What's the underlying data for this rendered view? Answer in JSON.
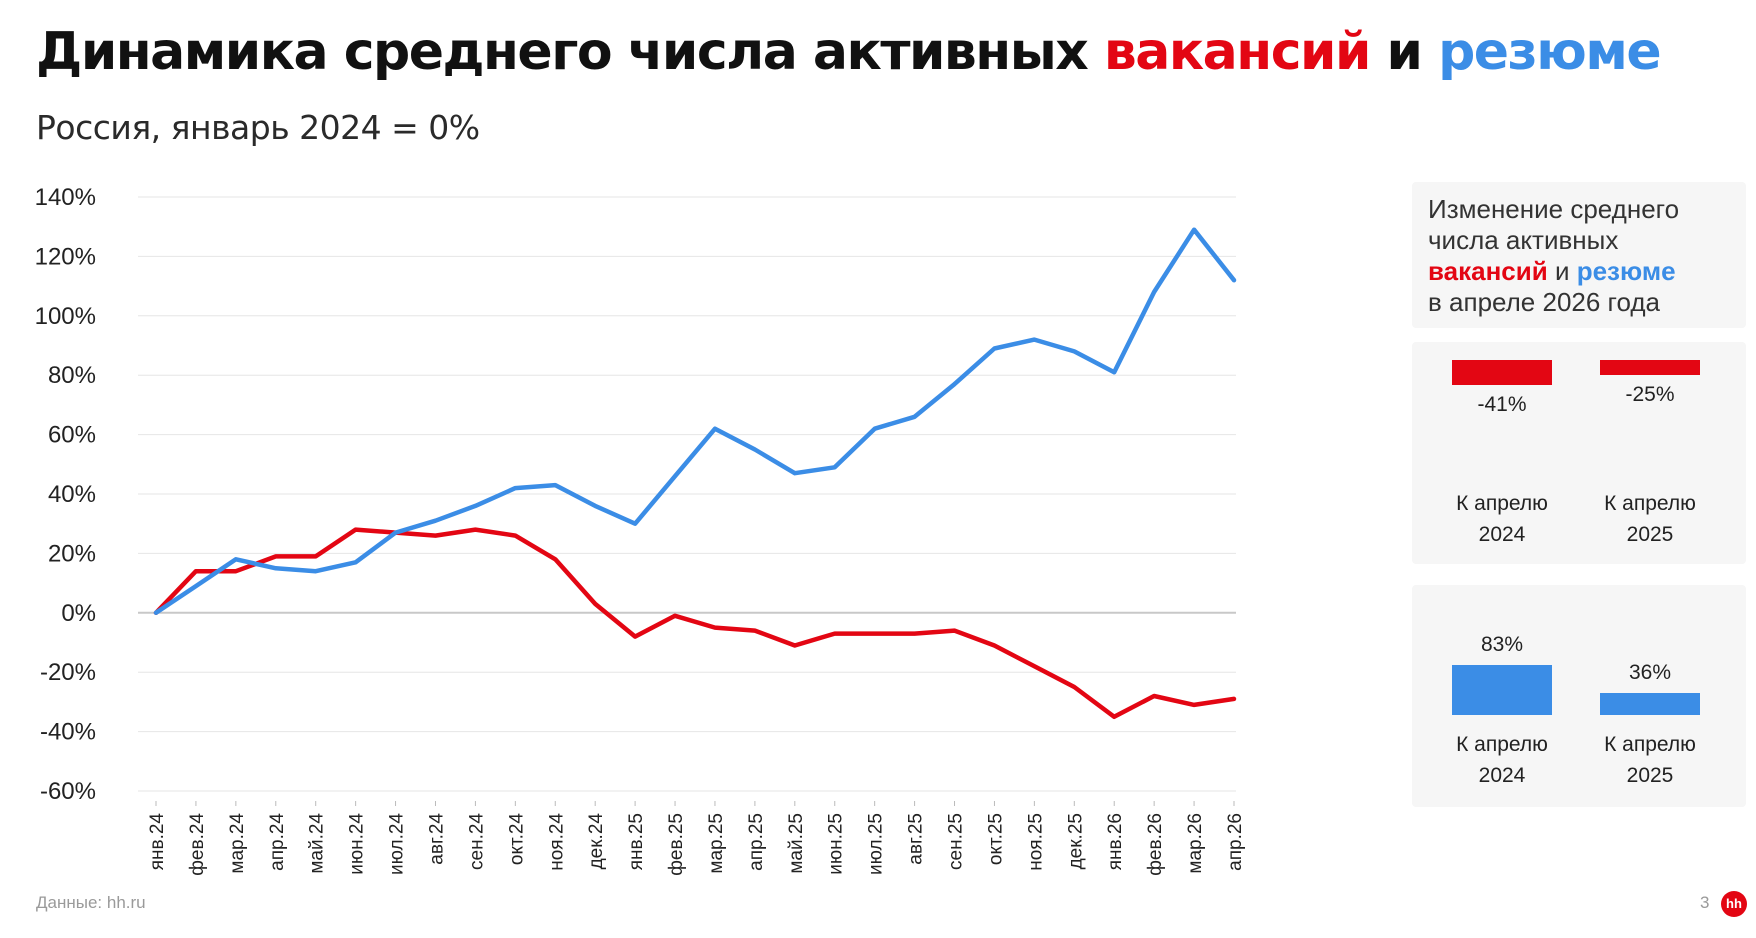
{
  "title": {
    "part1": "Динамика среднего числа активных ",
    "vacancies": "вакансий",
    "and": " и ",
    "resumes": "резюме"
  },
  "subtitle": "Россия, январь 2024 = 0%",
  "colors": {
    "vacancies": "#e30613",
    "resumes": "#3b8de6",
    "grid": "#e6e6e6",
    "panel": "#f6f6f6"
  },
  "chart_data": {
    "type": "line",
    "x": [
      "янв.24",
      "фев.24",
      "мар.24",
      "апр.24",
      "май.24",
      "июн.24",
      "июл.24",
      "авг.24",
      "сен.24",
      "окт.24",
      "ноя.24",
      "дек.24",
      "янв.25",
      "фев.25",
      "мар.25",
      "апр.25",
      "май.25",
      "июн.25",
      "июл.25",
      "авг.25",
      "сен.25",
      "окт.25",
      "ноя.25",
      "дек.25",
      "янв.26",
      "фев.26",
      "мар.26",
      "апр.26"
    ],
    "y_ticks": [
      "140%",
      "120%",
      "100%",
      "80%",
      "60%",
      "40%",
      "20%",
      "0%",
      "-20%",
      "-40%",
      "-60%"
    ],
    "ylim": [
      -60,
      140
    ],
    "grid": true,
    "series": [
      {
        "key": "vacancies",
        "values": [
          0,
          14,
          14,
          19,
          19,
          28,
          27,
          26,
          28,
          26,
          18,
          3,
          -8,
          -1,
          -5,
          -6,
          -11,
          -7,
          -7,
          -7,
          -6,
          -11,
          -18,
          -25,
          -35,
          -28,
          -31,
          -29
        ]
      },
      {
        "key": "resumes",
        "values": [
          0,
          9,
          18,
          15,
          14,
          17,
          27,
          31,
          36,
          42,
          43,
          36,
          30,
          46,
          62,
          55,
          47,
          49,
          62,
          66,
          77,
          89,
          92,
          88,
          81,
          108,
          129,
          112
        ]
      }
    ]
  },
  "legend": {
    "line1": "Изменение среднего",
    "line2": "числа активных",
    "vacancies": "вакансий",
    "and": " и ",
    "resumes": "резюме",
    "line4": "в апреле 2026 года"
  },
  "vacancy_bars": [
    {
      "value": -41,
      "value_label": "-41%",
      "label_line1": "К апрелю",
      "label_line2": "2024"
    },
    {
      "value": -25,
      "value_label": "-25%",
      "label_line1": "К апрелю",
      "label_line2": "2025"
    }
  ],
  "resume_bars": [
    {
      "value": 83,
      "value_label": "83%",
      "label_line1": "К апрелю",
      "label_line2": "2024"
    },
    {
      "value": 36,
      "value_label": "36%",
      "label_line1": "К апрелю",
      "label_line2": "2025"
    }
  ],
  "footer": {
    "source": "Данные: hh.ru",
    "page": "3",
    "logo": "hh"
  }
}
